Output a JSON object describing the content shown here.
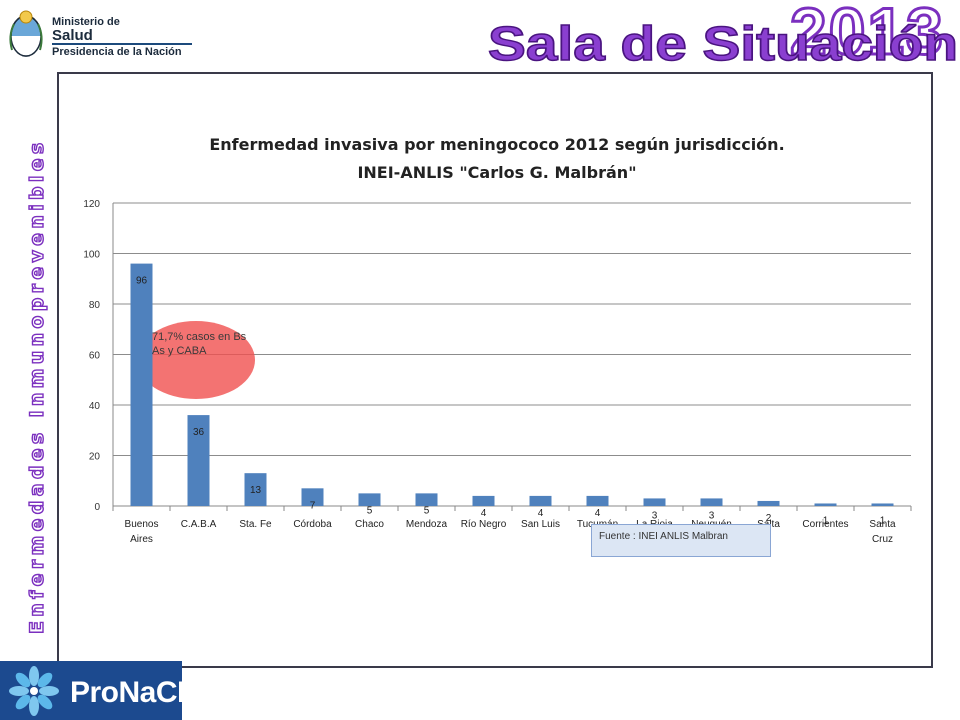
{
  "header": {
    "ministry_line1": "Ministerio de",
    "ministry_line2": "Salud",
    "ministry_line3": "Presidencia de la Nación",
    "main_title": "Sala de Situación",
    "year": "2013",
    "title_color": "#7b2fbf"
  },
  "sidebar": {
    "vertical_label": "Enfermedades Inmunoprevenibles"
  },
  "footer": {
    "program_name": "ProNaCEI"
  },
  "chart_data": {
    "type": "bar",
    "title_line1": "Enfermedad invasiva por meningococo 2012 según jurisdicción.",
    "title_line2": "INEI-ANLIS \"Carlos G. Malbrán\"",
    "categories": [
      [
        "Buenos",
        "Aires"
      ],
      [
        "C.A.B.A"
      ],
      [
        "Sta. Fe"
      ],
      [
        "Córdoba"
      ],
      [
        "Chaco"
      ],
      [
        "Mendoza"
      ],
      [
        "Río Negro"
      ],
      [
        "San Luis"
      ],
      [
        "Tucumán"
      ],
      [
        "La Rioja"
      ],
      [
        "Neuquén"
      ],
      [
        "Salta"
      ],
      [
        "Corrientes"
      ],
      [
        "Santa",
        "Cruz"
      ]
    ],
    "values": [
      96,
      36,
      13,
      7,
      5,
      5,
      4,
      4,
      4,
      3,
      3,
      2,
      1,
      1
    ],
    "ylim": [
      0,
      120
    ],
    "yticks": [
      0,
      20,
      40,
      60,
      80,
      100,
      120
    ],
    "grid": true,
    "bar_color": "#4f81bd",
    "annotation": "71,7% casos en Bs As y CABA",
    "annotation_color": "#f0504f",
    "source_note": "Fuente : INEI ANLIS Malbran"
  }
}
